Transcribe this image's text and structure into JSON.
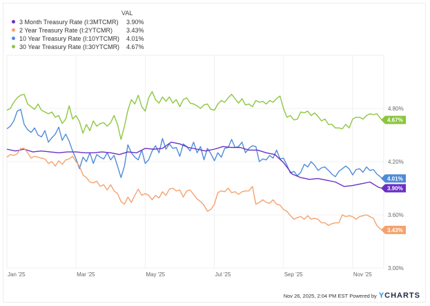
{
  "legend": {
    "value_header": "VAL",
    "items": [
      {
        "name": "3 Month Treasury Rate (I:3MTCMR)",
        "value": "3.90%",
        "color": "#6a2fc4"
      },
      {
        "name": "2 Year Treasury Rate (I:2YTCMR)",
        "value": "3.43%",
        "color": "#f5a16c"
      },
      {
        "name": "10 Year Treasury Rate (I:10YTCMR)",
        "value": "4.01%",
        "color": "#4f8ad6"
      },
      {
        "name": "30 Year Treasury Rate (I:30YTCMR)",
        "value": "4.67%",
        "color": "#8cc63f"
      }
    ]
  },
  "footer": {
    "timestamp": "Nov 26, 2025, 2:04 PM EST",
    "powered_by": "Powered by",
    "brand_y": "Y",
    "brand_rest": "CHARTS"
  },
  "chart_data": {
    "type": "line",
    "title": "",
    "xlabel": "",
    "ylabel": "",
    "x_unit": "months since Jan 1 2025",
    "xlim": [
      0,
      10.9
    ],
    "ylim": [
      3.0,
      5.4
    ],
    "grid": true,
    "legend_position": "top-left",
    "x_ticks": [
      {
        "x": 0,
        "label": "Jan '25"
      },
      {
        "x": 2,
        "label": "Mar '25"
      },
      {
        "x": 4,
        "label": "May '25"
      },
      {
        "x": 6,
        "label": "Jul '25"
      },
      {
        "x": 8,
        "label": "Sep '25"
      },
      {
        "x": 10,
        "label": "Nov '25"
      }
    ],
    "y_ticks": [
      {
        "y": 3.0,
        "label": "3.00%"
      },
      {
        "y": 3.6,
        "label": "3.60%"
      },
      {
        "y": 4.2,
        "label": "4.20%"
      },
      {
        "y": 4.8,
        "label": "4.80%"
      }
    ],
    "end_labels": [
      {
        "series": "30 Year Treasury Rate (I:30YTCMR)",
        "value": 4.67,
        "label": "4.67%"
      },
      {
        "series": "10 Year Treasury Rate (I:10YTCMR)",
        "value": 4.01,
        "label": "4.01%"
      },
      {
        "series": "3 Month Treasury Rate (I:3MTCMR)",
        "value": 3.9,
        "label": "3.90%"
      },
      {
        "series": "2 Year Treasury Rate (I:2YTCMR)",
        "value": 3.43,
        "label": "3.43%"
      }
    ],
    "series": [
      {
        "name": "30 Year Treasury Rate (I:30YTCMR)",
        "color": "#8cc63f",
        "x": [
          0,
          0.1,
          0.2,
          0.3,
          0.4,
          0.5,
          0.6,
          0.7,
          0.8,
          0.9,
          1.0,
          1.1,
          1.2,
          1.3,
          1.4,
          1.5,
          1.6,
          1.7,
          1.8,
          1.9,
          2.0,
          2.1,
          2.2,
          2.3,
          2.4,
          2.5,
          2.6,
          2.7,
          2.8,
          2.9,
          3.0,
          3.1,
          3.2,
          3.3,
          3.4,
          3.5,
          3.6,
          3.7,
          3.8,
          3.9,
          4.0,
          4.1,
          4.2,
          4.3,
          4.4,
          4.5,
          4.6,
          4.7,
          4.8,
          4.9,
          5.0,
          5.1,
          5.2,
          5.3,
          5.4,
          5.5,
          5.6,
          5.7,
          5.8,
          5.9,
          6.0,
          6.1,
          6.2,
          6.3,
          6.4,
          6.5,
          6.6,
          6.7,
          6.8,
          6.9,
          7.0,
          7.1,
          7.2,
          7.3,
          7.4,
          7.5,
          7.6,
          7.7,
          7.8,
          7.9,
          8.0,
          8.1,
          8.2,
          8.3,
          8.4,
          8.5,
          8.6,
          8.7,
          8.8,
          8.9,
          9.0,
          9.1,
          9.2,
          9.3,
          9.4,
          9.5,
          9.6,
          9.7,
          9.8,
          9.9,
          10.0,
          10.1,
          10.2,
          10.3,
          10.4,
          10.5,
          10.6,
          10.7,
          10.8,
          10.85
        ],
        "values": [
          4.78,
          4.8,
          4.87,
          4.92,
          4.95,
          4.96,
          4.85,
          4.82,
          4.79,
          4.85,
          4.78,
          4.76,
          4.74,
          4.76,
          4.7,
          4.72,
          4.63,
          4.68,
          4.83,
          4.68,
          4.72,
          4.65,
          4.52,
          4.62,
          4.55,
          4.66,
          4.6,
          4.63,
          4.64,
          4.6,
          4.64,
          4.72,
          4.62,
          4.45,
          4.6,
          4.78,
          4.9,
          4.85,
          4.95,
          4.82,
          4.77,
          4.92,
          4.99,
          4.9,
          4.86,
          4.93,
          4.88,
          4.93,
          4.86,
          4.9,
          4.82,
          4.9,
          4.92,
          4.86,
          4.85,
          4.83,
          4.8,
          4.84,
          4.85,
          4.79,
          4.78,
          4.85,
          4.89,
          4.87,
          4.92,
          4.96,
          4.91,
          4.86,
          4.91,
          4.84,
          4.85,
          4.82,
          4.89,
          4.87,
          4.88,
          4.85,
          4.89,
          4.87,
          4.91,
          4.94,
          4.8,
          4.7,
          4.72,
          4.67,
          4.68,
          4.76,
          4.75,
          4.77,
          4.72,
          4.75,
          4.71,
          4.66,
          4.68,
          4.62,
          4.62,
          4.58,
          4.58,
          4.57,
          4.62,
          4.58,
          4.68,
          4.7,
          4.7,
          4.68,
          4.72,
          4.74,
          4.73,
          4.74,
          4.69,
          4.67
        ]
      },
      {
        "name": "10 Year Treasury Rate (I:10YTCMR)",
        "color": "#4f8ad6",
        "x": [
          0,
          0.1,
          0.2,
          0.3,
          0.4,
          0.5,
          0.6,
          0.7,
          0.8,
          0.9,
          1.0,
          1.1,
          1.2,
          1.3,
          1.4,
          1.5,
          1.6,
          1.7,
          1.8,
          1.9,
          2.0,
          2.1,
          2.2,
          2.3,
          2.4,
          2.5,
          2.6,
          2.7,
          2.8,
          2.9,
          3.0,
          3.1,
          3.2,
          3.3,
          3.4,
          3.5,
          3.6,
          3.7,
          3.8,
          3.9,
          4.0,
          4.1,
          4.2,
          4.3,
          4.4,
          4.5,
          4.6,
          4.7,
          4.8,
          4.9,
          5.0,
          5.1,
          5.2,
          5.3,
          5.4,
          5.5,
          5.6,
          5.7,
          5.8,
          5.9,
          6.0,
          6.1,
          6.2,
          6.3,
          6.4,
          6.5,
          6.6,
          6.7,
          6.8,
          6.9,
          7.0,
          7.1,
          7.2,
          7.3,
          7.4,
          7.5,
          7.6,
          7.7,
          7.8,
          7.9,
          8.0,
          8.1,
          8.2,
          8.3,
          8.4,
          8.5,
          8.6,
          8.7,
          8.8,
          8.9,
          9.0,
          9.1,
          9.2,
          9.3,
          9.4,
          9.5,
          9.6,
          9.7,
          9.8,
          9.9,
          10.0,
          10.1,
          10.2,
          10.3,
          10.4,
          10.5,
          10.6,
          10.7,
          10.8,
          10.85
        ],
        "values": [
          4.57,
          4.6,
          4.66,
          4.77,
          4.79,
          4.62,
          4.56,
          4.53,
          4.58,
          4.5,
          4.48,
          4.55,
          4.42,
          4.47,
          4.51,
          4.59,
          4.44,
          4.51,
          4.43,
          4.32,
          4.23,
          4.12,
          4.25,
          4.2,
          4.3,
          4.18,
          4.28,
          4.25,
          4.23,
          4.3,
          4.22,
          4.27,
          4.15,
          4.02,
          4.15,
          4.39,
          4.3,
          4.25,
          4.22,
          4.33,
          4.18,
          4.22,
          4.32,
          4.38,
          4.3,
          4.46,
          4.34,
          4.4,
          4.35,
          4.36,
          4.26,
          4.4,
          4.37,
          4.32,
          4.42,
          4.3,
          4.37,
          4.22,
          4.35,
          4.29,
          4.21,
          4.3,
          4.25,
          4.35,
          4.36,
          4.45,
          4.36,
          4.37,
          4.42,
          4.3,
          4.35,
          4.38,
          4.37,
          4.2,
          4.23,
          4.22,
          4.27,
          4.24,
          4.33,
          4.23,
          4.24,
          4.16,
          4.07,
          4.09,
          4.04,
          4.08,
          4.17,
          4.14,
          4.2,
          4.16,
          4.1,
          4.13,
          4.14,
          4.1,
          4.06,
          4.03,
          4.09,
          4.12,
          4.15,
          4.12,
          4.05,
          4.11,
          4.12,
          4.08,
          4.14,
          4.1,
          4.11,
          4.06,
          4.03,
          4.01
        ]
      },
      {
        "name": "3 Month Treasury Rate (I:3MTCMR)",
        "color": "#6a2fc4",
        "x": [
          0,
          0.25,
          0.5,
          0.75,
          1.0,
          1.25,
          1.5,
          1.75,
          2.0,
          2.25,
          2.5,
          2.75,
          3.0,
          3.25,
          3.5,
          3.75,
          4.0,
          4.25,
          4.5,
          4.75,
          5.0,
          5.25,
          5.5,
          5.75,
          6.0,
          6.25,
          6.5,
          6.75,
          7.0,
          7.25,
          7.5,
          7.75,
          8.0,
          8.25,
          8.5,
          8.75,
          9.0,
          9.25,
          9.5,
          9.75,
          10.0,
          10.25,
          10.5,
          10.75,
          10.85
        ],
        "values": [
          4.34,
          4.32,
          4.34,
          4.31,
          4.32,
          4.31,
          4.3,
          4.31,
          4.31,
          4.3,
          4.3,
          4.31,
          4.3,
          4.28,
          4.31,
          4.3,
          4.35,
          4.34,
          4.35,
          4.42,
          4.4,
          4.36,
          4.34,
          4.32,
          4.34,
          4.37,
          4.36,
          4.36,
          4.33,
          4.33,
          4.3,
          4.28,
          4.19,
          4.06,
          4.02,
          4.0,
          4.01,
          3.99,
          3.97,
          3.92,
          3.93,
          3.95,
          3.97,
          3.91,
          3.9
        ]
      },
      {
        "name": "2 Year Treasury Rate (I:2YTCMR)",
        "color": "#f5a16c",
        "x": [
          0,
          0.1,
          0.2,
          0.3,
          0.4,
          0.5,
          0.6,
          0.7,
          0.8,
          0.9,
          1.0,
          1.1,
          1.2,
          1.3,
          1.4,
          1.5,
          1.6,
          1.7,
          1.8,
          1.9,
          2.0,
          2.1,
          2.2,
          2.3,
          2.4,
          2.5,
          2.6,
          2.7,
          2.8,
          2.9,
          3.0,
          3.1,
          3.2,
          3.3,
          3.4,
          3.5,
          3.6,
          3.7,
          3.8,
          3.9,
          4.0,
          4.1,
          4.2,
          4.3,
          4.4,
          4.5,
          4.6,
          4.7,
          4.8,
          4.9,
          5.0,
          5.1,
          5.2,
          5.3,
          5.4,
          5.5,
          5.6,
          5.7,
          5.8,
          5.9,
          6.0,
          6.1,
          6.2,
          6.3,
          6.4,
          6.5,
          6.6,
          6.7,
          6.8,
          6.9,
          7.0,
          7.1,
          7.2,
          7.3,
          7.4,
          7.5,
          7.6,
          7.7,
          7.8,
          7.9,
          8.0,
          8.1,
          8.2,
          8.3,
          8.4,
          8.5,
          8.6,
          8.7,
          8.8,
          8.9,
          9.0,
          9.1,
          9.2,
          9.3,
          9.4,
          9.5,
          9.6,
          9.7,
          9.8,
          9.9,
          10.0,
          10.1,
          10.2,
          10.3,
          10.4,
          10.5,
          10.6,
          10.7,
          10.8,
          10.85
        ],
        "values": [
          4.25,
          4.28,
          4.27,
          4.29,
          4.35,
          4.35,
          4.3,
          4.24,
          4.26,
          4.25,
          4.24,
          4.23,
          4.18,
          4.2,
          4.15,
          4.21,
          4.17,
          4.22,
          4.23,
          4.26,
          4.2,
          4.15,
          4.05,
          4.02,
          3.97,
          3.96,
          3.98,
          3.92,
          3.94,
          3.88,
          3.94,
          3.87,
          3.84,
          3.75,
          3.72,
          3.8,
          3.74,
          3.82,
          3.89,
          3.82,
          3.84,
          3.82,
          3.77,
          3.82,
          3.79,
          3.86,
          3.82,
          3.89,
          3.9,
          3.87,
          3.88,
          3.8,
          3.87,
          3.88,
          3.83,
          3.78,
          3.75,
          3.71,
          3.64,
          3.66,
          3.72,
          3.85,
          3.87,
          3.86,
          3.9,
          3.85,
          3.86,
          3.83,
          3.86,
          3.87,
          3.87,
          3.92,
          3.72,
          3.74,
          3.77,
          3.74,
          3.73,
          3.77,
          3.72,
          3.71,
          3.66,
          3.64,
          3.59,
          3.55,
          3.57,
          3.58,
          3.55,
          3.59,
          3.55,
          3.56,
          3.55,
          3.51,
          3.51,
          3.48,
          3.5,
          3.51,
          3.51,
          3.6,
          3.58,
          3.59,
          3.58,
          3.55,
          3.58,
          3.59,
          3.6,
          3.58,
          3.56,
          3.48,
          3.44,
          3.43
        ]
      }
    ]
  }
}
